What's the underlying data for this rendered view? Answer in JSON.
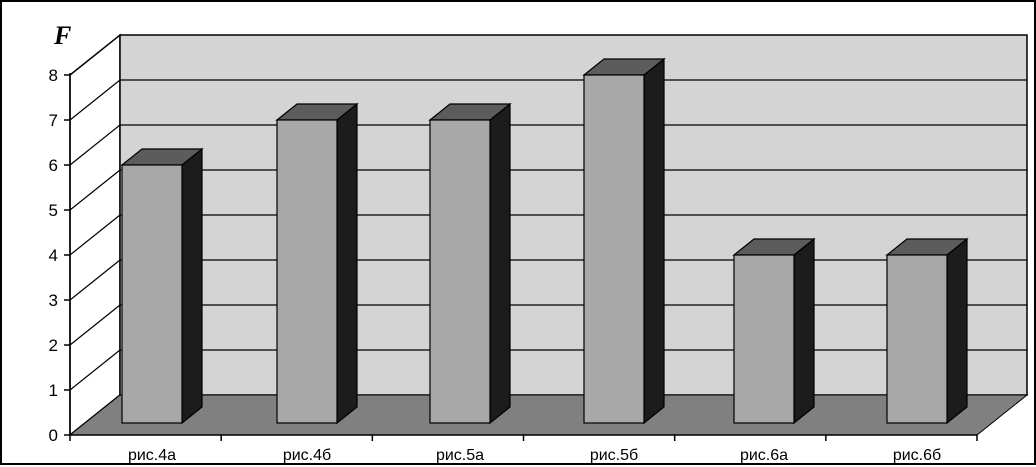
{
  "chart_data": {
    "type": "bar",
    "style": "3d-column",
    "categories": [
      "рис.4а",
      "рис.4б",
      "рис.5а",
      "рис.5б",
      "рис.6а",
      "рис.6б"
    ],
    "values": [
      6,
      7,
      7,
      8,
      4,
      4
    ],
    "title": "",
    "xlabel": "",
    "ylabel": "F",
    "ylim": [
      0,
      8
    ],
    "yticks": [
      0,
      1,
      2,
      3,
      4,
      5,
      6,
      7,
      8
    ],
    "grid": true,
    "legend": "none",
    "colors": {
      "bar_front": "#a8a8a8",
      "bar_side": "#1c1c1c",
      "bar_top": "#5c5c5c",
      "back_wall": "#d4d4d4",
      "side_wall": "#ffffff",
      "floor": "#808080",
      "gridline": "#000000"
    }
  }
}
